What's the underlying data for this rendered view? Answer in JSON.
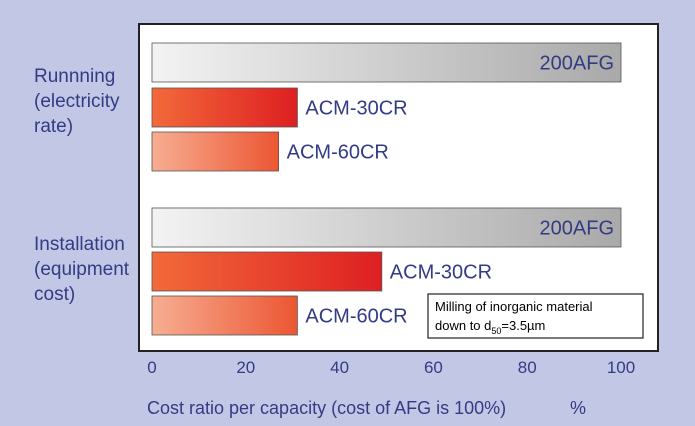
{
  "chart_data": {
    "type": "bar",
    "orientation": "horizontal",
    "title": "",
    "xlabel": "Cost ratio per capacity (cost of AFG is 100%)",
    "x_unit": "%",
    "xlim": [
      0,
      100
    ],
    "x_ticks": [
      "0",
      "20",
      "40",
      "60",
      "80",
      "100"
    ],
    "grid": false,
    "groups": [
      {
        "label_lines": [
          "Runnning",
          "(electricity",
          "rate)"
        ],
        "bars": [
          {
            "name": "200AFG",
            "value": 100,
            "style": "gray"
          },
          {
            "name": "ACM-30CR",
            "value": 31,
            "style": "red"
          },
          {
            "name": "ACM-60CR",
            "value": 27,
            "style": "light-red"
          }
        ]
      },
      {
        "label_lines": [
          "Installation",
          "(equipment",
          "cost)"
        ],
        "bars": [
          {
            "name": "200AFG",
            "value": 100,
            "style": "gray"
          },
          {
            "name": "ACM-30CR",
            "value": 49,
            "style": "red"
          },
          {
            "name": "ACM-60CR",
            "value": 31,
            "style": "light-red"
          }
        ]
      }
    ],
    "annotation": {
      "line1": "Milling of inorganic material",
      "line2_prefix": "down to d",
      "line2_sub": "50",
      "line2_suffix": "=3.5µm"
    },
    "colors": {
      "background": "#c3c7e6",
      "plot": "#ffffff",
      "text": "#333b84",
      "axis": "#222222"
    }
  }
}
